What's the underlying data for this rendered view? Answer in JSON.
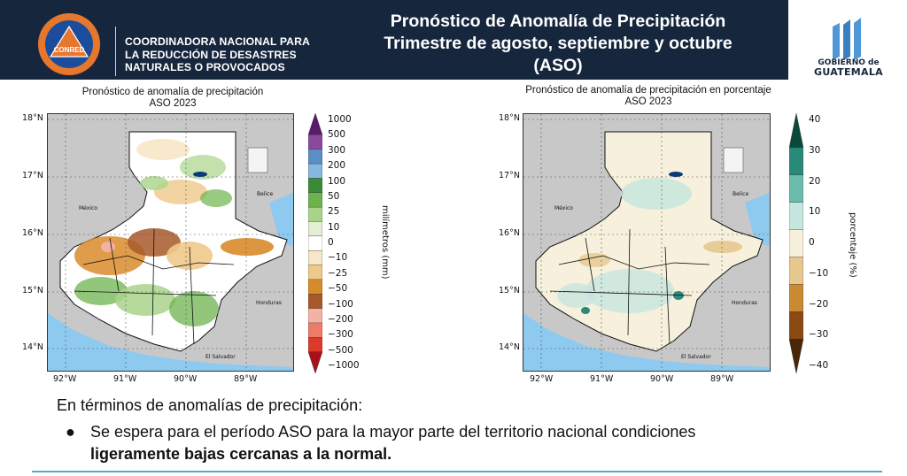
{
  "header": {
    "logo_text": "CONRED",
    "org_lines": [
      "COORDINADORA NACIONAL PARA",
      "LA REDUCCIÓN DE DESASTRES",
      "NATURALES O PROVOCADOS"
    ],
    "title_lines": [
      "Pronóstico de Anomalía de Precipitación",
      "Trimestre de agosto, septiembre y octubre",
      "(ASO)"
    ],
    "gov_line1": "GOBIERNO de",
    "gov_line2": "GUATEMALA",
    "colors": {
      "navy": "#16263d",
      "conred_orange": "#e8772e",
      "conred_blue": "#1b4d9c"
    }
  },
  "left_map": {
    "title": "Pronóstico de anomalía de precipitación",
    "subtitle": "ASO 2023",
    "lon_ticks": [
      "92°W",
      "91°W",
      "90°W",
      "89°W"
    ],
    "lat_ticks": [
      "18°N",
      "17°N",
      "16°N",
      "15°N",
      "14°N"
    ],
    "labels": {
      "mexico": "México",
      "belice": "Belice",
      "honduras": "Honduras",
      "el_salvador": "El Salvador"
    },
    "colorbar": {
      "unit": "milímetros (mm)",
      "ticks": [
        "1000",
        "500",
        "300",
        "200",
        "100",
        "50",
        "25",
        "10",
        "0",
        "−10",
        "−25",
        "−50",
        "−100",
        "−200",
        "−300",
        "−500",
        "−1000"
      ],
      "colors": [
        "#5b1a6b",
        "#8a4a9c",
        "#5c8ec6",
        "#85b7df",
        "#3a8a3a",
        "#6db34d",
        "#a8d48a",
        "#e2efd3",
        "#ffffff",
        "#f7e7c6",
        "#efc98b",
        "#d98b2b",
        "#a8582a",
        "#f4b2a5",
        "#ee7a6a",
        "#dd3a2a",
        "#a8111c"
      ]
    }
  },
  "right_map": {
    "title": "Pronóstico de anomalía de precipitación en porcentaje",
    "subtitle": "ASO 2023",
    "lon_ticks": [
      "92°W",
      "91°W",
      "90°W",
      "89°W"
    ],
    "lat_ticks": [
      "18°N",
      "17°N",
      "16°N",
      "15°N",
      "14°N"
    ],
    "labels": {
      "mexico": "México",
      "belice": "Belice",
      "honduras": "Honduras",
      "el_salvador": "El Salvador"
    },
    "colorbar": {
      "unit": "porcentaje (%)",
      "ticks": [
        "40",
        "30",
        "20",
        "10",
        "0",
        "−10",
        "−20",
        "−30",
        "−40"
      ],
      "colors": [
        "#0b4a3a",
        "#2a8a7a",
        "#6bbcac",
        "#c4e6df",
        "#f7f0dc",
        "#e6c88f",
        "#c98a32",
        "#8a4a12",
        "#4a2608"
      ]
    }
  },
  "body": {
    "intro": "En términos de anomalías de precipitación:",
    "bullet_plain": "Se espera para el período ASO para la mayor parte del territorio nacional condiciones",
    "bullet_bold": "ligeramente bajas cercanas a la normal."
  }
}
